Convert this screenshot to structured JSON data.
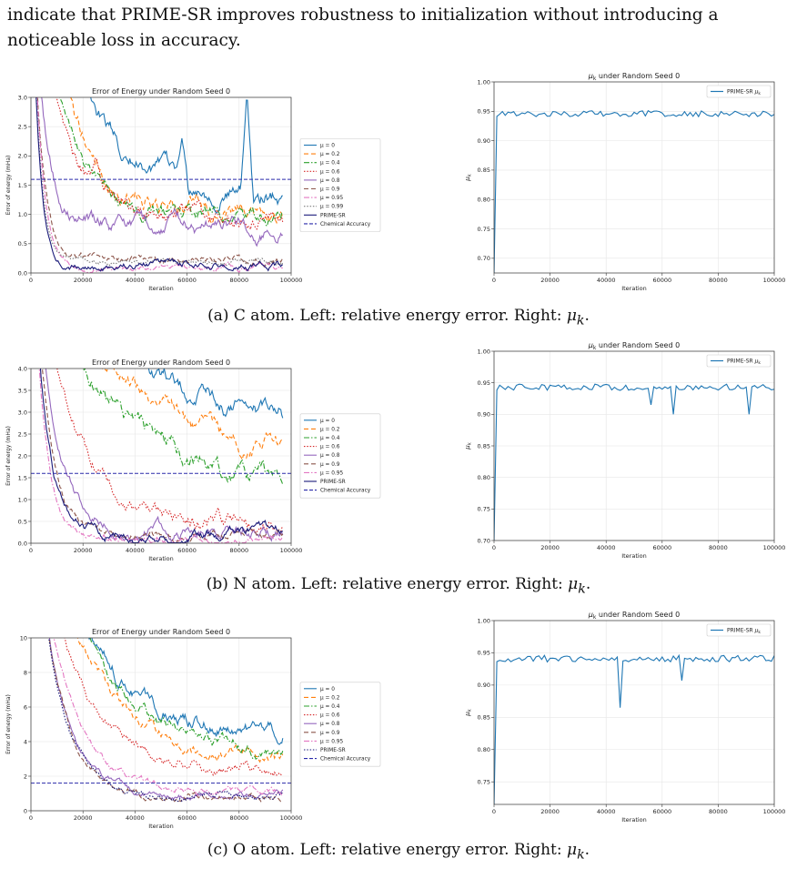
{
  "intro_text": "indicate that PRIME-SR improves robustness to initialization without introducing a noticeable loss in accuracy.",
  "captions": [
    {
      "prefix": "(a) C atom. Left: relative energy error. Right:",
      "symbol": "μ",
      "sub": "k",
      "suffix": "."
    },
    {
      "prefix": "(b) N atom. Left: relative energy error. Right:",
      "symbol": "μ",
      "sub": "k",
      "suffix": "."
    },
    {
      "prefix": "(c) O atom. Left: relative energy error. Right:",
      "symbol": "μ",
      "sub": "k",
      "suffix": "."
    }
  ],
  "colors": {
    "mu0": "#1f77b4",
    "mu02": "#ff7f0e",
    "mu04": "#2ca02c",
    "mu06": "#d62728",
    "mu08": "#9467bd",
    "mu09": "#8c564b",
    "mu095": "#e377c2",
    "mu099": "#7f7f7f",
    "prime": "#1a1a7a",
    "chem": "#2a2aaa",
    "mu_line": "#1f77b4"
  },
  "chart_data": [
    {
      "id": "C-error",
      "type": "line",
      "title": "Error of Energy under Random Seed 0",
      "xlabel": "Iteration",
      "ylabel": "Error of energy (mHa)",
      "xlim": [
        0,
        100000
      ],
      "ylim": [
        0,
        3.0
      ],
      "xticks": [
        0,
        20000,
        40000,
        60000,
        80000,
        100000
      ],
      "yticks": [
        "0.0",
        "0.5",
        "1.0",
        "1.5",
        "2.0",
        "2.5",
        "3.0"
      ],
      "grid": true,
      "legend_position": "outside-right",
      "x_end": 97000,
      "chemical_accuracy": 1.6,
      "series": [
        {
          "name": "μ = 0",
          "color_key": "mu0",
          "dash": "solid",
          "start": 6.0,
          "end": 1.25,
          "tau": 22000,
          "noise": 0.09,
          "spikes": [
            [
              35000,
              1.9
            ],
            [
              58000,
              2.3
            ],
            [
              83000,
              3.1
            ]
          ]
        },
        {
          "name": "μ = 0.2",
          "color_key": "mu02",
          "dash": "dashed",
          "start": 6.0,
          "end": 1.0,
          "tau": 15000,
          "noise": 0.09
        },
        {
          "name": "μ = 0.4",
          "color_key": "mu04",
          "dash": "dashdot",
          "start": 6.0,
          "end": 0.95,
          "tau": 12000,
          "noise": 0.08
        },
        {
          "name": "μ = 0.6",
          "color_key": "mu06",
          "dash": "dotted",
          "start": 6.0,
          "end": 1.0,
          "tau": 10000,
          "noise": 0.08,
          "spikes": [
            [
              25000,
              2.0
            ]
          ]
        },
        {
          "name": "μ = 0.8",
          "color_key": "mu08",
          "dash": "solid",
          "start": 6.0,
          "end": 0.75,
          "tau": 5000,
          "noise": 0.08
        },
        {
          "name": "μ = 0.9",
          "color_key": "mu09",
          "dash": "dashed",
          "start": 6.0,
          "end": 0.22,
          "tau": 3500,
          "noise": 0.04
        },
        {
          "name": "μ = 0.95",
          "color_key": "mu095",
          "dash": "dashdot",
          "start": 6.0,
          "end": 0.08,
          "tau": 3500,
          "noise": 0.03
        },
        {
          "name": "μ = 0.99",
          "color_key": "mu099",
          "dash": "dotted",
          "start": 6.0,
          "end": 0.18,
          "tau": 3000,
          "noise": 0.03
        },
        {
          "name": "PRIME-SR",
          "color_key": "prime",
          "dash": "solid",
          "start": 6.0,
          "end": 0.15,
          "tau": 2800,
          "noise": 0.04
        }
      ],
      "legend_extra": "Chemical Accuracy"
    },
    {
      "id": "C-mu",
      "type": "line",
      "title": "μk under Random Seed 0",
      "title_sym": "μ",
      "title_sub": "k",
      "title_rest": " under Random Seed 0",
      "xlabel": "Iteration",
      "ylabel": "μk",
      "xlim": [
        0,
        100000
      ],
      "ylim": [
        0.675,
        1.0
      ],
      "xticks": [
        0,
        20000,
        40000,
        60000,
        80000,
        100000
      ],
      "yticks": [
        "0.70",
        "0.75",
        "0.80",
        "0.85",
        "0.90",
        "0.95",
        "1.00"
      ],
      "grid": true,
      "legend_position": "top-right",
      "series": [
        {
          "name": "PRIME-SR μk",
          "base": 0.946,
          "noise": 0.005,
          "start": 0.675,
          "dips": []
        }
      ]
    },
    {
      "id": "N-error",
      "type": "line",
      "title": "Error of Energy under Random Seed 0",
      "xlabel": "Iteration",
      "ylabel": "Error of energy (mHa)",
      "xlim": [
        0,
        100000
      ],
      "ylim": [
        0,
        4.0
      ],
      "xticks": [
        0,
        20000,
        40000,
        60000,
        80000,
        100000
      ],
      "yticks": [
        "0.0",
        "0.5",
        "1.0",
        "1.5",
        "2.0",
        "2.5",
        "3.0",
        "3.5",
        "4.0"
      ],
      "grid": true,
      "legend_position": "outside-right",
      "x_end": 97000,
      "chemical_accuracy": 1.6,
      "series": [
        {
          "name": "μ = 0",
          "color_key": "mu0",
          "dash": "solid",
          "start": 8.0,
          "end": 2.6,
          "tau": 35000,
          "noise": 0.12
        },
        {
          "name": "μ = 0.2",
          "color_key": "mu02",
          "dash": "dashed",
          "start": 8.0,
          "end": 1.9,
          "tau": 30000,
          "noise": 0.12
        },
        {
          "name": "μ = 0.4",
          "color_key": "mu04",
          "dash": "dashdot",
          "start": 8.0,
          "end": 1.3,
          "tau": 25000,
          "noise": 0.12
        },
        {
          "name": "μ = 0.6",
          "color_key": "mu06",
          "dash": "dotted",
          "start": 8.0,
          "end": 0.45,
          "tau": 14000,
          "noise": 0.1
        },
        {
          "name": "μ = 0.8",
          "color_key": "mu08",
          "dash": "solid",
          "start": 8.0,
          "end": 0.25,
          "tau": 8000,
          "noise": 0.08
        },
        {
          "name": "μ = 0.9",
          "color_key": "mu09",
          "dash": "dashed",
          "start": 8.0,
          "end": 0.2,
          "tau": 6000,
          "noise": 0.06
        },
        {
          "name": "μ = 0.95",
          "color_key": "mu095",
          "dash": "dashdot",
          "start": 8.0,
          "end": 0.1,
          "tau": 4500,
          "noise": 0.05
        },
        {
          "name": "PRIME-SR",
          "color_key": "prime",
          "dash": "solid",
          "start": 8.0,
          "end": 0.22,
          "tau": 5000,
          "noise": 0.07
        }
      ],
      "legend_extra": "Chemical Accuracy"
    },
    {
      "id": "N-mu",
      "type": "line",
      "title": "μk under Random Seed 0",
      "title_sym": "μ",
      "title_sub": "k",
      "title_rest": " under Random Seed 0",
      "xlabel": "Iteration",
      "ylabel": "μk",
      "xlim": [
        0,
        100000
      ],
      "ylim": [
        0.7,
        1.0
      ],
      "xticks": [
        0,
        20000,
        40000,
        60000,
        80000,
        100000
      ],
      "yticks": [
        "0.70",
        "0.75",
        "0.80",
        "0.85",
        "0.90",
        "0.95",
        "1.00"
      ],
      "grid": true,
      "legend_position": "top-right",
      "series": [
        {
          "name": "PRIME-SR μk",
          "base": 0.943,
          "noise": 0.005,
          "start": 0.7,
          "dips": [
            [
              56000,
              0.915
            ],
            [
              64000,
              0.9
            ],
            [
              91000,
              0.9
            ]
          ]
        }
      ]
    },
    {
      "id": "O-error",
      "type": "line",
      "title": "Error of Energy under Random Seed 0",
      "xlabel": "Iteration",
      "ylabel": "Error of energy (mHa)",
      "xlim": [
        0,
        100000
      ],
      "ylim": [
        0,
        10
      ],
      "xticks": [
        0,
        20000,
        40000,
        60000,
        80000,
        100000
      ],
      "yticks": [
        "0",
        "2",
        "4",
        "6",
        "8",
        "10"
      ],
      "grid": true,
      "legend_position": "outside-right",
      "x_end": 97000,
      "chemical_accuracy": 1.6,
      "series": [
        {
          "name": "μ = 0",
          "color_key": "mu0",
          "dash": "solid",
          "start": 20.0,
          "end": 4.4,
          "tau": 22000,
          "noise": 0.25
        },
        {
          "name": "μ = 0.2",
          "color_key": "mu02",
          "dash": "dashed",
          "start": 20.0,
          "end": 2.6,
          "tau": 22000,
          "noise": 0.2
        },
        {
          "name": "μ = 0.4",
          "color_key": "mu04",
          "dash": "dashdot",
          "start": 20.0,
          "end": 3.0,
          "tau": 24000,
          "noise": 0.2
        },
        {
          "name": "μ = 0.6",
          "color_key": "mu06",
          "dash": "dotted",
          "start": 20.0,
          "end": 2.3,
          "tau": 16000,
          "noise": 0.18
        },
        {
          "name": "μ = 0.8",
          "color_key": "mu08",
          "dash": "solid",
          "start": 20.0,
          "end": 0.9,
          "tau": 9500,
          "noise": 0.12
        },
        {
          "name": "μ = 0.9",
          "color_key": "mu09",
          "dash": "dashed",
          "start": 20.0,
          "end": 0.8,
          "tau": 9500,
          "noise": 0.12
        },
        {
          "name": "μ = 0.95",
          "color_key": "mu095",
          "dash": "dashdot",
          "start": 20.0,
          "end": 1.1,
          "tau": 12000,
          "noise": 0.12
        },
        {
          "name": "PRIME-SR",
          "color_key": "prime",
          "dash": "dotted",
          "start": 20.0,
          "end": 0.8,
          "tau": 9500,
          "noise": 0.12
        }
      ],
      "legend_extra": "Chemical Accuracy"
    },
    {
      "id": "O-mu",
      "type": "line",
      "title": "μk under Random Seed 0",
      "title_sym": "μ",
      "title_sub": "k",
      "title_rest": " under Random Seed 0",
      "xlabel": "Iteration",
      "ylabel": "μk",
      "xlim": [
        0,
        100000
      ],
      "ylim": [
        0.715,
        1.0
      ],
      "xticks": [
        0,
        20000,
        40000,
        60000,
        80000,
        100000
      ],
      "yticks": [
        "0.75",
        "0.80",
        "0.85",
        "0.90",
        "0.95",
        "1.00"
      ],
      "grid": true,
      "legend_position": "top-right",
      "series": [
        {
          "name": "PRIME-SR μk",
          "base": 0.941,
          "noise": 0.005,
          "start": 0.715,
          "dips": [
            [
              45000,
              0.865
            ],
            [
              67000,
              0.907
            ]
          ]
        }
      ]
    }
  ]
}
